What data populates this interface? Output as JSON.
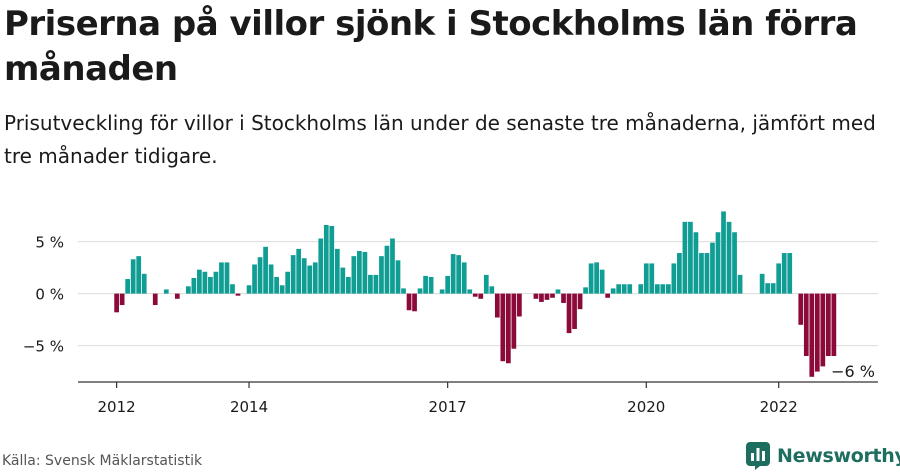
{
  "title": "Priserna på villor sjönk i Stockholms län förra månaden",
  "subtitle": "Prisutveckling för villor i Stockholms län under de senaste tre månaderna, jämfört med tre månader tidigare.",
  "source": "Källa: Svensk Mäklarstatistik",
  "brand": {
    "name": "Newsworthy",
    "logo_icon": "newsworthy-logo-icon"
  },
  "colors": {
    "positive": "#0f9d94",
    "negative": "#8b0a3a",
    "grid": "#dcdcdc",
    "axis": "#333333",
    "text": "#1a1a1a",
    "brand": "#1e6e5f"
  },
  "chart_data": {
    "type": "bar",
    "title": "Priserna på villor sjönk i Stockholms län förra månaden",
    "subtitle": "Prisutveckling för villor i Stockholms län under de senaste tre månaderna, jämfört med tre månader tidigare.",
    "xlabel": "",
    "ylabel": "",
    "unit": "%",
    "ylim": [
      -8.5,
      9
    ],
    "yticks": [
      {
        "value": 5,
        "label": "5 %"
      },
      {
        "value": 0,
        "label": "0 %"
      },
      {
        "value": -5,
        "label": "−5 %"
      }
    ],
    "xticks": [
      {
        "value": "2012-01",
        "label": "2012"
      },
      {
        "value": "2014-01",
        "label": "2014"
      },
      {
        "value": "2017-01",
        "label": "2017"
      },
      {
        "value": "2020-01",
        "label": "2020"
      },
      {
        "value": "2022-01",
        "label": "2022"
      }
    ],
    "xlim": [
      "2011-06",
      "2023-07"
    ],
    "grid": true,
    "legend": "none",
    "start": "2012-01",
    "values": [
      -1.8,
      -1.1,
      1.4,
      3.3,
      3.6,
      1.9,
      0,
      -1.1,
      0,
      0.4,
      0,
      -0.5,
      0,
      0.7,
      1.5,
      2.3,
      2.1,
      1.6,
      2.1,
      3.0,
      3.0,
      0.9,
      -0.2,
      0,
      0.8,
      2.8,
      3.5,
      4.5,
      2.8,
      1.6,
      0.8,
      2.1,
      3.7,
      4.3,
      3.4,
      2.7,
      3.0,
      5.3,
      6.6,
      6.5,
      4.3,
      2.5,
      1.6,
      3.6,
      4.1,
      4.0,
      1.8,
      1.8,
      3.6,
      4.6,
      5.3,
      3.2,
      0.5,
      -1.6,
      -1.7,
      0.5,
      1.7,
      1.6,
      0,
      0.4,
      1.7,
      3.8,
      3.7,
      3.0,
      0.4,
      -0.3,
      -0.5,
      1.8,
      0.7,
      -2.3,
      -6.5,
      -6.7,
      -5.3,
      -2.2,
      0,
      0,
      -0.5,
      -0.8,
      -0.6,
      -0.4,
      0.4,
      -0.9,
      -3.8,
      -3.4,
      -1.5,
      0.6,
      2.9,
      3.0,
      2.3,
      -0.4,
      0.5,
      0.9,
      0.9,
      0.9,
      0,
      0.9,
      2.9,
      2.9,
      0.9,
      0.9,
      0.9,
      2.9,
      3.9,
      6.9,
      6.9,
      5.9,
      3.9,
      3.9,
      4.9,
      5.9,
      7.9,
      6.9,
      5.9,
      1.8,
      0,
      0,
      0,
      1.9,
      1.0,
      1.0,
      2.9,
      3.9,
      3.9,
      0,
      -3.0,
      -6.0,
      -8.0,
      -7.5,
      -7.0,
      -6.0,
      -6.0
    ],
    "annotation": {
      "x": "2022-11",
      "label": "−6 %"
    }
  }
}
